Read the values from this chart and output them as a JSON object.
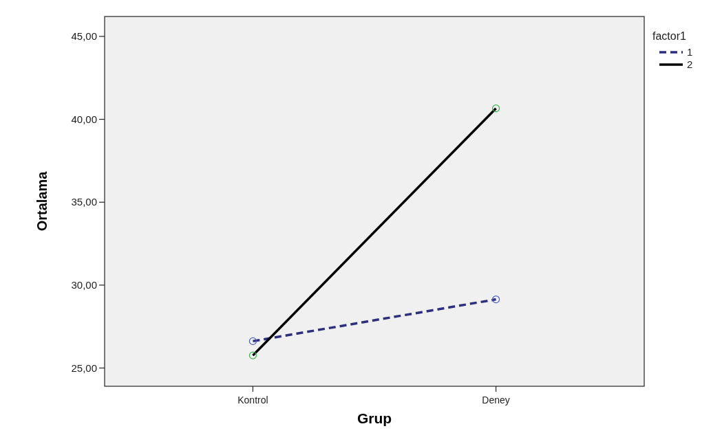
{
  "chart_data": {
    "type": "line",
    "xlabel": "Grup",
    "ylabel": "Ortalama",
    "legend_title": "factor1",
    "categories": [
      "Kontrol",
      "Deney"
    ],
    "series": [
      {
        "name": "1",
        "color": "#2b2f7d",
        "values": [
          26.62,
          29.14
        ],
        "line_style": "dashed"
      },
      {
        "name": "2",
        "color": "#000000",
        "values": [
          25.76,
          40.66
        ],
        "line_style": "solid"
      }
    ],
    "ylim": [
      23.9,
      46.2
    ],
    "yticks": [
      {
        "value": 25,
        "label": "25,00"
      },
      {
        "value": 30,
        "label": "30,00"
      },
      {
        "value": 35,
        "label": "35,00"
      },
      {
        "value": 40,
        "label": "40,00"
      },
      {
        "value": 45,
        "label": "45,00"
      }
    ],
    "marker": "circle",
    "legend": "right",
    "grid": false
  }
}
